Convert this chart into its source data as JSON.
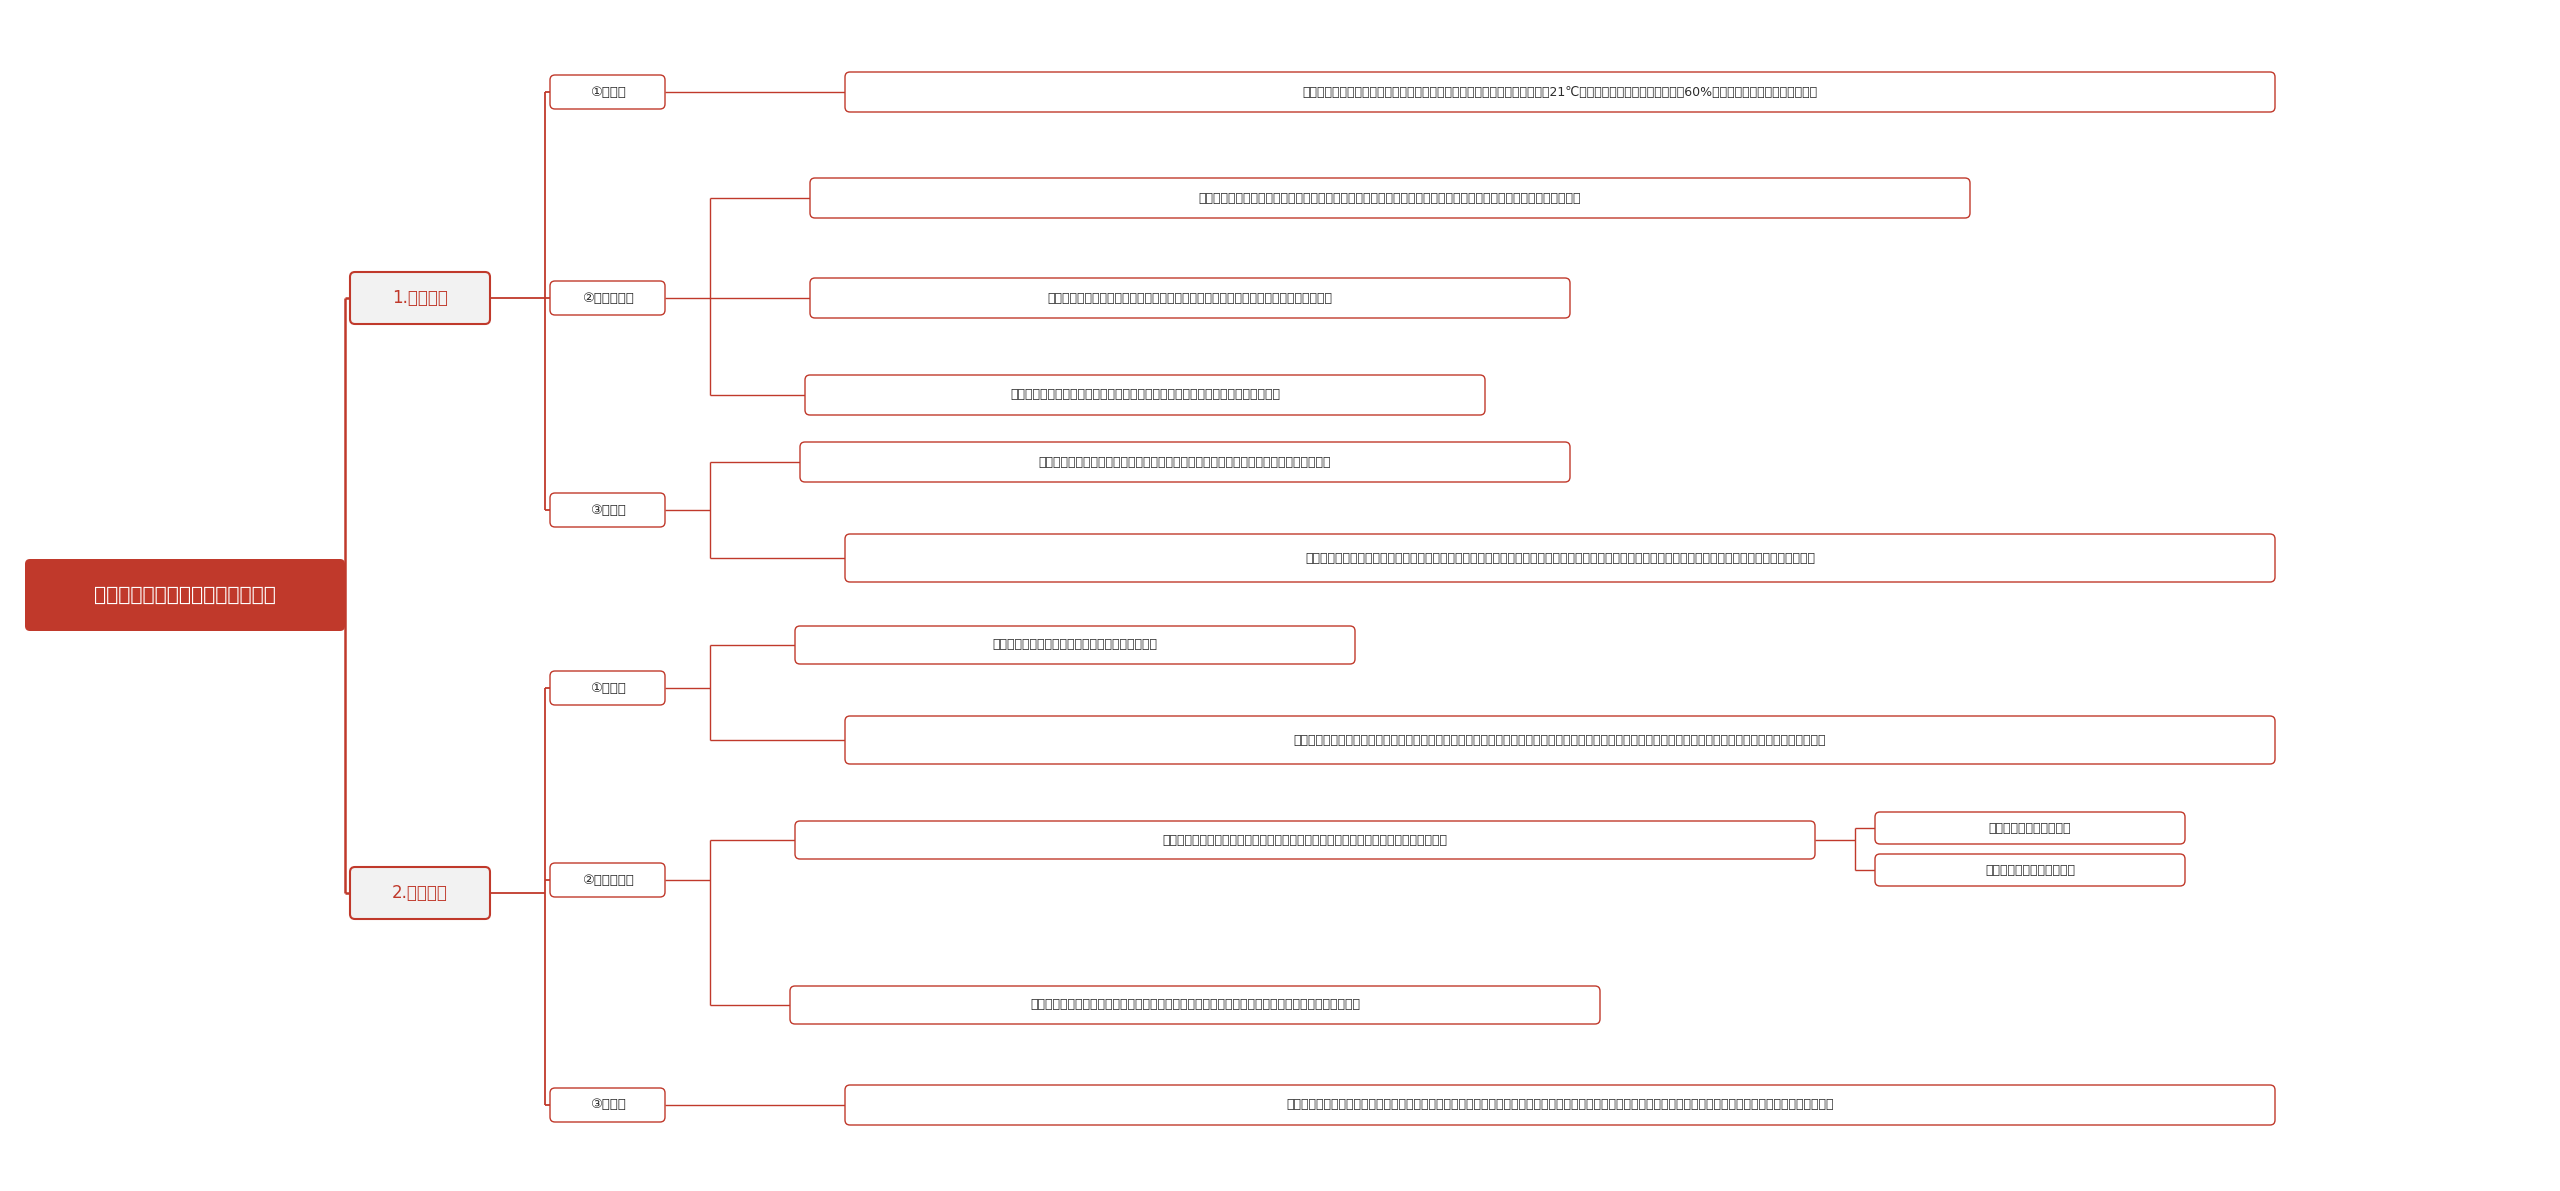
{
  "title": "医学基础知识点：散热方式的区分",
  "bg_color": "#ffffff",
  "title_bg": "#c0392b",
  "title_text_color": "#ffffff",
  "branch_color": "#c0392b",
  "node_border_color": "#c0392b",
  "node_bg_color": "#ffffff",
  "node_text_color": "#2c2c2c",
  "main_node1": "1.辐射散热",
  "main_node2": "2.对流散热",
  "node1_sub1_label": "①概念：",
  "node1_sub1_text": "是指人体以热射线的形式将体热传给外界较冷物质的一种散热方式，人体在21℃的环境中，在裸体情况下，约有60%的热量是通过辐射方式发散的。",
  "node1_sub2_label": "②影响因素：",
  "node1_sub2_items": [
    "散热量的多少主要取决于皮肤与周围环境之间的温度差，当皮肤温度高于环境温度时，温度差越大，散热量就越多。",
    "反之，若环境温度高于皮肤温度，则机体不仅不能散热，反将吸收周围环境中的热量。",
    "此外，辐射散热还取决于机体的有效散热面积，有效散热面积越大，散热就越多。"
  ],
  "node1_sub3_label": "③举例：",
  "node1_sub3_items": [
    "生活中经常见到的地暖就是典型的辐射散热，它先加热地板，再由地板把热量传播开来。",
    "就像农村传统的火炕，先把土炕烧热，整个屋子都能感觉到温暖。而对于人体来说，人体就像一个火炉子，高于环境温度时，不停的以热射线的形式散热。"
  ],
  "node2_sub1_label": "①概念：",
  "node2_sub1_items": [
    "是指通过气体流动进行热量交换的一种散热方式。",
    "人的体表周围有层薄空气，当人体散发的热量传给这层空气后，由于空气不断的流动，已被体表加温的空气移去，较冷的空气移来，体热将不断散发到体外空间。"
  ],
  "node2_sub2_label": "②影响因素：",
  "node2_sub2_main": "除取决于皮肤与周围环境之间的温度差和机体的有效散热面积外，受风速的影响较大。",
  "node2_sub2_subitems": [
    "风速越大，散热量就越多",
    "风速越小，散热量也越少。"
  ],
  "node2_sub2_item2": "衣服覆盖皮肤表面，加之棉毛纤维间的空气不易流动，这些因素都可使对流难以实现而有利于保温。",
  "node2_sub3_label": "③举例：",
  "node2_sub3_text": "市场上最新出现的很多电暖气片，上端有很多风道，内置散热片，散热片将空气加热后，利用空气的流动性，使热空气从风道流出来，散布到四周，达到升温的目的。"
}
